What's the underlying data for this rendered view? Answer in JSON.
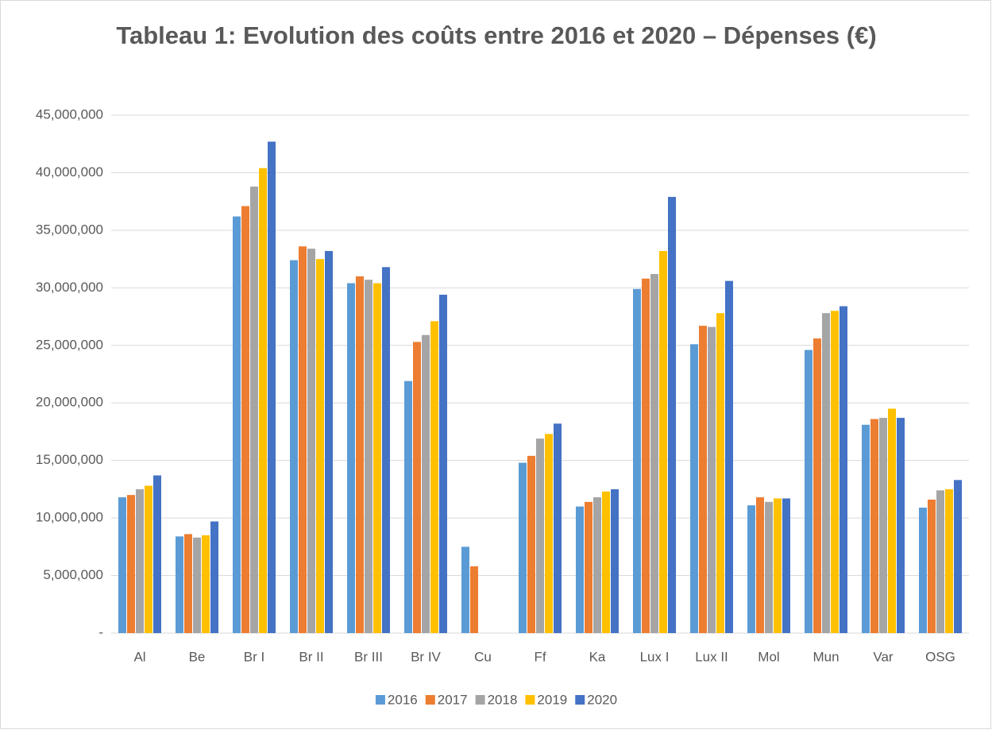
{
  "chart_data": {
    "type": "bar",
    "title": "Tableau 1: Evolution des coûts entre 2016 et 2020 – Dépenses (€)",
    "categories": [
      "Al",
      "Be",
      "Br I",
      "Br II",
      "Br III",
      "Br IV",
      "Cu",
      "Ff",
      "Ka",
      "Lux I",
      "Lux II",
      "Mol",
      "Mun",
      "Var",
      "OSG"
    ],
    "series": [
      {
        "name": "2016",
        "color": "#5b9bd5",
        "values": [
          11800000,
          8400000,
          36200000,
          32400000,
          30400000,
          21900000,
          7500000,
          14800000,
          11000000,
          29900000,
          25100000,
          11100000,
          24600000,
          18100000,
          10900000
        ]
      },
      {
        "name": "2017",
        "color": "#ed7d31",
        "values": [
          12000000,
          8600000,
          37100000,
          33600000,
          31000000,
          25300000,
          5800000,
          15400000,
          11400000,
          30800000,
          26700000,
          11800000,
          25600000,
          18600000,
          11600000
        ]
      },
      {
        "name": "2018",
        "color": "#a5a5a5",
        "values": [
          12500000,
          8300000,
          38800000,
          33400000,
          30700000,
          25900000,
          null,
          16900000,
          11800000,
          31200000,
          26600000,
          11400000,
          27800000,
          18700000,
          12400000
        ]
      },
      {
        "name": "2019",
        "color": "#ffc000",
        "values": [
          12800000,
          8500000,
          40400000,
          32500000,
          30400000,
          27100000,
          null,
          17300000,
          12300000,
          33200000,
          27800000,
          11700000,
          28000000,
          19500000,
          12500000
        ]
      },
      {
        "name": "2020",
        "color": "#4472c4",
        "values": [
          13700000,
          9700000,
          42700000,
          33200000,
          31800000,
          29400000,
          null,
          18200000,
          12500000,
          37900000,
          30600000,
          11700000,
          28400000,
          18700000,
          13300000
        ]
      }
    ],
    "ylim": [
      0,
      45000000
    ],
    "yticks": [
      {
        "value": 0,
        "label": "-"
      },
      {
        "value": 5000000,
        "label": "5,000,000"
      },
      {
        "value": 10000000,
        "label": "10,000,000"
      },
      {
        "value": 15000000,
        "label": "15,000,000"
      },
      {
        "value": 20000000,
        "label": "20,000,000"
      },
      {
        "value": 25000000,
        "label": "25,000,000"
      },
      {
        "value": 30000000,
        "label": "30,000,000"
      },
      {
        "value": 35000000,
        "label": "35,000,000"
      },
      {
        "value": 40000000,
        "label": "40,000,000"
      },
      {
        "value": 45000000,
        "label": "45,000,000"
      }
    ],
    "grid": true,
    "legend": "bottom"
  }
}
